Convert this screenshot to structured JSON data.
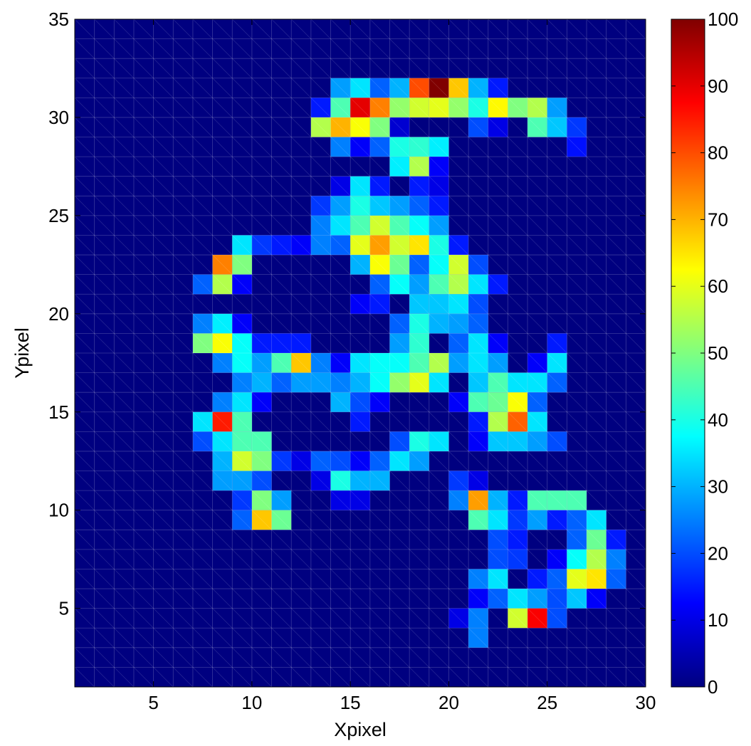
{
  "chart_data": {
    "type": "heatmap",
    "title": "",
    "xlabel": "Xpixel",
    "ylabel": "Ypixel",
    "xlim": [
      1,
      30
    ],
    "ylim": [
      1,
      35
    ],
    "xticks": [
      5,
      10,
      15,
      20,
      25,
      30
    ],
    "yticks": [
      5,
      10,
      15,
      20,
      25,
      30,
      35
    ],
    "xtick_labels": [
      "5",
      "10",
      "15",
      "20",
      "25",
      "30"
    ],
    "ytick_labels": [
      "5",
      "10",
      "15",
      "20",
      "25",
      "30",
      "35"
    ],
    "colormap": "jet",
    "clim": [
      0,
      100
    ],
    "colorbar_ticks": [
      0,
      10,
      20,
      30,
      40,
      50,
      60,
      70,
      80,
      90,
      100
    ],
    "colorbar_labels": [
      "0",
      "10",
      "20",
      "30",
      "40",
      "50",
      "60",
      "70",
      "80",
      "90",
      "100"
    ],
    "background_value": 0,
    "grid_lines": true,
    "cells": [
      {
        "x": 17,
        "y": 31,
        "v": 30
      },
      {
        "x": 18,
        "y": 31,
        "v": 80
      },
      {
        "x": 19,
        "y": 31,
        "v": 100
      },
      {
        "x": 20,
        "y": 31,
        "v": 68
      },
      {
        "x": 21,
        "y": 31,
        "v": 30
      },
      {
        "x": 22,
        "y": 31,
        "v": 15
      },
      {
        "x": 16,
        "y": 31,
        "v": 22
      },
      {
        "x": 15,
        "y": 31,
        "v": 35
      },
      {
        "x": 14,
        "y": 31,
        "v": 28
      },
      {
        "x": 13,
        "y": 30,
        "v": 15
      },
      {
        "x": 14,
        "y": 30,
        "v": 45
      },
      {
        "x": 15,
        "y": 30,
        "v": 90
      },
      {
        "x": 16,
        "y": 30,
        "v": 75
      },
      {
        "x": 17,
        "y": 30,
        "v": 52
      },
      {
        "x": 18,
        "y": 30,
        "v": 58
      },
      {
        "x": 19,
        "y": 30,
        "v": 60
      },
      {
        "x": 20,
        "y": 30,
        "v": 52
      },
      {
        "x": 21,
        "y": 30,
        "v": 40
      },
      {
        "x": 22,
        "y": 30,
        "v": 63
      },
      {
        "x": 23,
        "y": 30,
        "v": 50
      },
      {
        "x": 24,
        "y": 30,
        "v": 55
      },
      {
        "x": 25,
        "y": 30,
        "v": 28
      },
      {
        "x": 13,
        "y": 29,
        "v": 55
      },
      {
        "x": 14,
        "y": 29,
        "v": 70
      },
      {
        "x": 15,
        "y": 29,
        "v": 62
      },
      {
        "x": 16,
        "y": 29,
        "v": 50
      },
      {
        "x": 17,
        "y": 29,
        "v": 8
      },
      {
        "x": 21,
        "y": 29,
        "v": 20
      },
      {
        "x": 22,
        "y": 29,
        "v": 10
      },
      {
        "x": 24,
        "y": 29,
        "v": 45
      },
      {
        "x": 25,
        "y": 29,
        "v": 32
      },
      {
        "x": 26,
        "y": 29,
        "v": 18
      },
      {
        "x": 14,
        "y": 28,
        "v": 25
      },
      {
        "x": 15,
        "y": 28,
        "v": 12
      },
      {
        "x": 16,
        "y": 28,
        "v": 22
      },
      {
        "x": 17,
        "y": 28,
        "v": 40
      },
      {
        "x": 18,
        "y": 28,
        "v": 42
      },
      {
        "x": 19,
        "y": 28,
        "v": 36
      },
      {
        "x": 26,
        "y": 28,
        "v": 14
      },
      {
        "x": 17,
        "y": 27,
        "v": 36
      },
      {
        "x": 18,
        "y": 27,
        "v": 55
      },
      {
        "x": 19,
        "y": 27,
        "v": 12
      },
      {
        "x": 14,
        "y": 26,
        "v": 10
      },
      {
        "x": 15,
        "y": 26,
        "v": 35
      },
      {
        "x": 16,
        "y": 26,
        "v": 15
      },
      {
        "x": 18,
        "y": 26,
        "v": 15
      },
      {
        "x": 19,
        "y": 26,
        "v": 10
      },
      {
        "x": 13,
        "y": 25,
        "v": 18
      },
      {
        "x": 14,
        "y": 25,
        "v": 28
      },
      {
        "x": 15,
        "y": 25,
        "v": 40
      },
      {
        "x": 16,
        "y": 25,
        "v": 32
      },
      {
        "x": 17,
        "y": 25,
        "v": 28
      },
      {
        "x": 18,
        "y": 25,
        "v": 22
      },
      {
        "x": 19,
        "y": 25,
        "v": 15
      },
      {
        "x": 13,
        "y": 24,
        "v": 25
      },
      {
        "x": 14,
        "y": 24,
        "v": 35
      },
      {
        "x": 15,
        "y": 24,
        "v": 45
      },
      {
        "x": 16,
        "y": 24,
        "v": 58
      },
      {
        "x": 17,
        "y": 24,
        "v": 45
      },
      {
        "x": 18,
        "y": 24,
        "v": 38
      },
      {
        "x": 19,
        "y": 24,
        "v": 28
      },
      {
        "x": 9,
        "y": 23,
        "v": 35
      },
      {
        "x": 10,
        "y": 23,
        "v": 18
      },
      {
        "x": 11,
        "y": 23,
        "v": 15
      },
      {
        "x": 12,
        "y": 23,
        "v": 12
      },
      {
        "x": 13,
        "y": 23,
        "v": 25
      },
      {
        "x": 14,
        "y": 23,
        "v": 22
      },
      {
        "x": 15,
        "y": 23,
        "v": 60
      },
      {
        "x": 16,
        "y": 23,
        "v": 72
      },
      {
        "x": 17,
        "y": 23,
        "v": 58
      },
      {
        "x": 18,
        "y": 23,
        "v": 65
      },
      {
        "x": 19,
        "y": 23,
        "v": 40
      },
      {
        "x": 20,
        "y": 23,
        "v": 15
      },
      {
        "x": 8,
        "y": 22,
        "v": 75
      },
      {
        "x": 9,
        "y": 22,
        "v": 50
      },
      {
        "x": 15,
        "y": 22,
        "v": 30
      },
      {
        "x": 16,
        "y": 22,
        "v": 62
      },
      {
        "x": 17,
        "y": 22,
        "v": 48
      },
      {
        "x": 18,
        "y": 22,
        "v": 22
      },
      {
        "x": 19,
        "y": 22,
        "v": 38
      },
      {
        "x": 20,
        "y": 22,
        "v": 58
      },
      {
        "x": 21,
        "y": 22,
        "v": 20
      },
      {
        "x": 7,
        "y": 21,
        "v": 22
      },
      {
        "x": 8,
        "y": 21,
        "v": 55
      },
      {
        "x": 9,
        "y": 21,
        "v": 12
      },
      {
        "x": 16,
        "y": 21,
        "v": 22
      },
      {
        "x": 17,
        "y": 21,
        "v": 38
      },
      {
        "x": 18,
        "y": 21,
        "v": 28
      },
      {
        "x": 19,
        "y": 21,
        "v": 45
      },
      {
        "x": 20,
        "y": 21,
        "v": 55
      },
      {
        "x": 21,
        "y": 21,
        "v": 35
      },
      {
        "x": 22,
        "y": 21,
        "v": 15
      },
      {
        "x": 15,
        "y": 20,
        "v": 12
      },
      {
        "x": 16,
        "y": 20,
        "v": 15
      },
      {
        "x": 18,
        "y": 20,
        "v": 32
      },
      {
        "x": 19,
        "y": 20,
        "v": 32
      },
      {
        "x": 20,
        "y": 20,
        "v": 35
      },
      {
        "x": 21,
        "y": 20,
        "v": 20
      },
      {
        "x": 7,
        "y": 19,
        "v": 25
      },
      {
        "x": 8,
        "y": 19,
        "v": 36
      },
      {
        "x": 9,
        "y": 19,
        "v": 12
      },
      {
        "x": 17,
        "y": 19,
        "v": 22
      },
      {
        "x": 18,
        "y": 19,
        "v": 40
      },
      {
        "x": 19,
        "y": 19,
        "v": 30
      },
      {
        "x": 20,
        "y": 19,
        "v": 28
      },
      {
        "x": 21,
        "y": 19,
        "v": 22
      },
      {
        "x": 7,
        "y": 18,
        "v": 50
      },
      {
        "x": 8,
        "y": 18,
        "v": 62
      },
      {
        "x": 9,
        "y": 18,
        "v": 38
      },
      {
        "x": 10,
        "y": 18,
        "v": 15
      },
      {
        "x": 11,
        "y": 18,
        "v": 15
      },
      {
        "x": 12,
        "y": 18,
        "v": 15
      },
      {
        "x": 17,
        "y": 18,
        "v": 28
      },
      {
        "x": 18,
        "y": 18,
        "v": 42
      },
      {
        "x": 20,
        "y": 18,
        "v": 22
      },
      {
        "x": 21,
        "y": 18,
        "v": 35
      },
      {
        "x": 22,
        "y": 18,
        "v": 12
      },
      {
        "x": 25,
        "y": 18,
        "v": 15
      },
      {
        "x": 8,
        "y": 17,
        "v": 25
      },
      {
        "x": 9,
        "y": 17,
        "v": 38
      },
      {
        "x": 10,
        "y": 17,
        "v": 28
      },
      {
        "x": 11,
        "y": 17,
        "v": 45
      },
      {
        "x": 12,
        "y": 17,
        "v": 68
      },
      {
        "x": 13,
        "y": 17,
        "v": 25
      },
      {
        "x": 14,
        "y": 17,
        "v": 12
      },
      {
        "x": 15,
        "y": 17,
        "v": 35
      },
      {
        "x": 16,
        "y": 17,
        "v": 38
      },
      {
        "x": 17,
        "y": 17,
        "v": 38
      },
      {
        "x": 18,
        "y": 17,
        "v": 45
      },
      {
        "x": 19,
        "y": 17,
        "v": 55
      },
      {
        "x": 20,
        "y": 17,
        "v": 28
      },
      {
        "x": 21,
        "y": 17,
        "v": 35
      },
      {
        "x": 22,
        "y": 17,
        "v": 28
      },
      {
        "x": 24,
        "y": 17,
        "v": 12
      },
      {
        "x": 25,
        "y": 17,
        "v": 35
      },
      {
        "x": 9,
        "y": 16,
        "v": 25
      },
      {
        "x": 10,
        "y": 16,
        "v": 30
      },
      {
        "x": 11,
        "y": 16,
        "v": 22
      },
      {
        "x": 12,
        "y": 16,
        "v": 28
      },
      {
        "x": 13,
        "y": 16,
        "v": 28
      },
      {
        "x": 14,
        "y": 16,
        "v": 25
      },
      {
        "x": 15,
        "y": 16,
        "v": 30
      },
      {
        "x": 16,
        "y": 16,
        "v": 38
      },
      {
        "x": 17,
        "y": 16,
        "v": 52
      },
      {
        "x": 18,
        "y": 16,
        "v": 60
      },
      {
        "x": 19,
        "y": 16,
        "v": 35
      },
      {
        "x": 21,
        "y": 16,
        "v": 32
      },
      {
        "x": 22,
        "y": 16,
        "v": 45
      },
      {
        "x": 23,
        "y": 16,
        "v": 35
      },
      {
        "x": 24,
        "y": 16,
        "v": 35
      },
      {
        "x": 25,
        "y": 16,
        "v": 22
      },
      {
        "x": 8,
        "y": 15,
        "v": 25
      },
      {
        "x": 9,
        "y": 15,
        "v": 35
      },
      {
        "x": 10,
        "y": 15,
        "v": 12
      },
      {
        "x": 14,
        "y": 15,
        "v": 30
      },
      {
        "x": 15,
        "y": 15,
        "v": 20
      },
      {
        "x": 16,
        "y": 15,
        "v": 12
      },
      {
        "x": 20,
        "y": 15,
        "v": 12
      },
      {
        "x": 21,
        "y": 15,
        "v": 45
      },
      {
        "x": 22,
        "y": 15,
        "v": 48
      },
      {
        "x": 23,
        "y": 15,
        "v": 62
      },
      {
        "x": 24,
        "y": 15,
        "v": 22
      },
      {
        "x": 7,
        "y": 14,
        "v": 35
      },
      {
        "x": 8,
        "y": 14,
        "v": 85
      },
      {
        "x": 9,
        "y": 14,
        "v": 45
      },
      {
        "x": 15,
        "y": 14,
        "v": 15
      },
      {
        "x": 21,
        "y": 14,
        "v": 15
      },
      {
        "x": 22,
        "y": 14,
        "v": 55
      },
      {
        "x": 23,
        "y": 14,
        "v": 78
      },
      {
        "x": 24,
        "y": 14,
        "v": 35
      },
      {
        "x": 7,
        "y": 13,
        "v": 20
      },
      {
        "x": 8,
        "y": 13,
        "v": 35
      },
      {
        "x": 9,
        "y": 13,
        "v": 45
      },
      {
        "x": 10,
        "y": 13,
        "v": 45
      },
      {
        "x": 17,
        "y": 13,
        "v": 20
      },
      {
        "x": 18,
        "y": 13,
        "v": 40
      },
      {
        "x": 19,
        "y": 13,
        "v": 35
      },
      {
        "x": 21,
        "y": 13,
        "v": 12
      },
      {
        "x": 22,
        "y": 13,
        "v": 32
      },
      {
        "x": 23,
        "y": 13,
        "v": 32
      },
      {
        "x": 24,
        "y": 13,
        "v": 28
      },
      {
        "x": 25,
        "y": 13,
        "v": 20
      },
      {
        "x": 8,
        "y": 12,
        "v": 30
      },
      {
        "x": 9,
        "y": 12,
        "v": 58
      },
      {
        "x": 10,
        "y": 12,
        "v": 50
      },
      {
        "x": 11,
        "y": 12,
        "v": 18
      },
      {
        "x": 12,
        "y": 12,
        "v": 10
      },
      {
        "x": 13,
        "y": 12,
        "v": 22
      },
      {
        "x": 14,
        "y": 12,
        "v": 20
      },
      {
        "x": 15,
        "y": 12,
        "v": 12
      },
      {
        "x": 16,
        "y": 12,
        "v": 22
      },
      {
        "x": 17,
        "y": 12,
        "v": 35
      },
      {
        "x": 18,
        "y": 12,
        "v": 28
      },
      {
        "x": 8,
        "y": 11,
        "v": 28
      },
      {
        "x": 9,
        "y": 11,
        "v": 28
      },
      {
        "x": 10,
        "y": 11,
        "v": 20
      },
      {
        "x": 13,
        "y": 11,
        "v": 10
      },
      {
        "x": 14,
        "y": 11,
        "v": 40
      },
      {
        "x": 15,
        "y": 11,
        "v": 30
      },
      {
        "x": 16,
        "y": 11,
        "v": 30
      },
      {
        "x": 20,
        "y": 11,
        "v": 18
      },
      {
        "x": 21,
        "y": 11,
        "v": 10
      },
      {
        "x": 9,
        "y": 10,
        "v": 18
      },
      {
        "x": 10,
        "y": 10,
        "v": 50
      },
      {
        "x": 11,
        "y": 10,
        "v": 28
      },
      {
        "x": 14,
        "y": 10,
        "v": 10
      },
      {
        "x": 15,
        "y": 10,
        "v": 10
      },
      {
        "x": 20,
        "y": 10,
        "v": 25
      },
      {
        "x": 21,
        "y": 10,
        "v": 72
      },
      {
        "x": 22,
        "y": 10,
        "v": 30
      },
      {
        "x": 23,
        "y": 10,
        "v": 15
      },
      {
        "x": 24,
        "y": 10,
        "v": 45
      },
      {
        "x": 25,
        "y": 10,
        "v": 45
      },
      {
        "x": 26,
        "y": 10,
        "v": 45
      },
      {
        "x": 9,
        "y": 9,
        "v": 22
      },
      {
        "x": 10,
        "y": 9,
        "v": 68
      },
      {
        "x": 11,
        "y": 9,
        "v": 48
      },
      {
        "x": 21,
        "y": 9,
        "v": 45
      },
      {
        "x": 22,
        "y": 9,
        "v": 35
      },
      {
        "x": 23,
        "y": 9,
        "v": 18
      },
      {
        "x": 24,
        "y": 9,
        "v": 28
      },
      {
        "x": 25,
        "y": 9,
        "v": 15
      },
      {
        "x": 26,
        "y": 9,
        "v": 22
      },
      {
        "x": 27,
        "y": 9,
        "v": 35
      },
      {
        "x": 22,
        "y": 8,
        "v": 20
      },
      {
        "x": 23,
        "y": 8,
        "v": 15
      },
      {
        "x": 26,
        "y": 8,
        "v": 22
      },
      {
        "x": 27,
        "y": 8,
        "v": 48
      },
      {
        "x": 28,
        "y": 8,
        "v": 15
      },
      {
        "x": 22,
        "y": 7,
        "v": 20
      },
      {
        "x": 23,
        "y": 7,
        "v": 18
      },
      {
        "x": 25,
        "y": 7,
        "v": 12
      },
      {
        "x": 26,
        "y": 7,
        "v": 38
      },
      {
        "x": 27,
        "y": 7,
        "v": 55
      },
      {
        "x": 28,
        "y": 7,
        "v": 25
      },
      {
        "x": 21,
        "y": 6,
        "v": 25
      },
      {
        "x": 22,
        "y": 6,
        "v": 35
      },
      {
        "x": 24,
        "y": 6,
        "v": 15
      },
      {
        "x": 25,
        "y": 6,
        "v": 22
      },
      {
        "x": 26,
        "y": 6,
        "v": 60
      },
      {
        "x": 27,
        "y": 6,
        "v": 65
      },
      {
        "x": 28,
        "y": 6,
        "v": 22
      },
      {
        "x": 21,
        "y": 5,
        "v": 12
      },
      {
        "x": 22,
        "y": 5,
        "v": 22
      },
      {
        "x": 23,
        "y": 5,
        "v": 35
      },
      {
        "x": 24,
        "y": 5,
        "v": 28
      },
      {
        "x": 25,
        "y": 5,
        "v": 20
      },
      {
        "x": 26,
        "y": 5,
        "v": 32
      },
      {
        "x": 27,
        "y": 5,
        "v": 12
      },
      {
        "x": 20,
        "y": 4,
        "v": 10
      },
      {
        "x": 21,
        "y": 4,
        "v": 25
      },
      {
        "x": 23,
        "y": 4,
        "v": 58
      },
      {
        "x": 24,
        "y": 4,
        "v": 88
      },
      {
        "x": 25,
        "y": 4,
        "v": 20
      },
      {
        "x": 21,
        "y": 3,
        "v": 25
      }
    ]
  }
}
